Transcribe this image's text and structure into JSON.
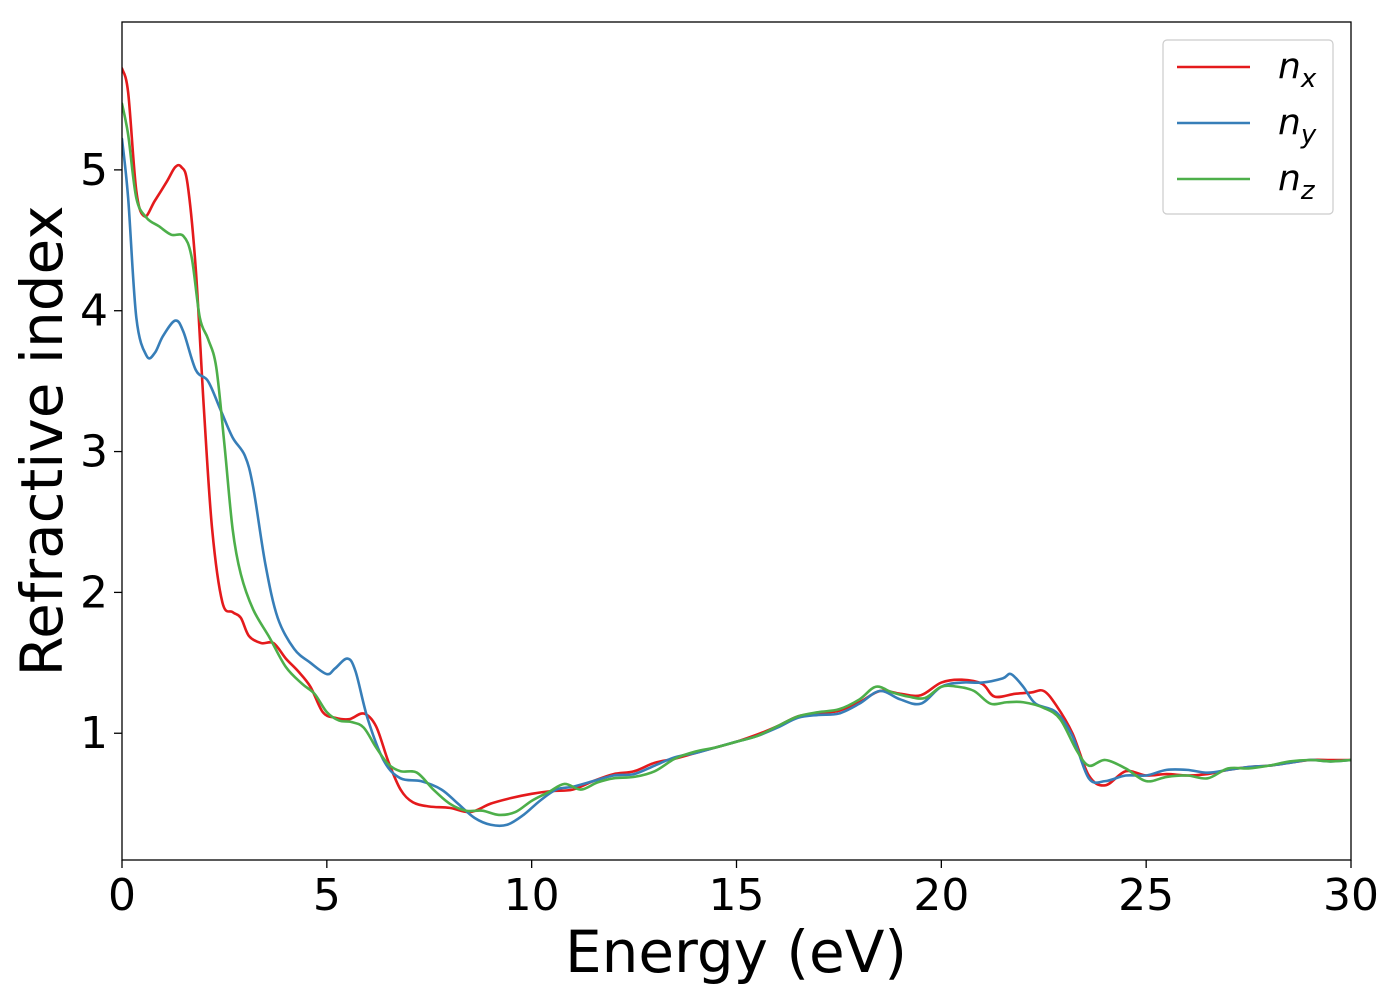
{
  "chart_data": {
    "type": "line",
    "title": "",
    "xlabel": "Energy (eV)",
    "ylabel": "Refractive index",
    "xlim": [
      0,
      30
    ],
    "ylim": [
      0.1,
      6.05
    ],
    "xticks": [
      0,
      5,
      10,
      15,
      20,
      25,
      30
    ],
    "yticks": [
      1,
      2,
      3,
      4,
      5
    ],
    "grid": false,
    "legend": {
      "position": "top-right"
    },
    "series": [
      {
        "name": "n_x",
        "label_main": "n",
        "label_sub": "x",
        "color": "#e41a1c",
        "points": [
          [
            0,
            5.72
          ],
          [
            0.15,
            5.55
          ],
          [
            0.35,
            4.85
          ],
          [
            0.55,
            4.67
          ],
          [
            0.8,
            4.78
          ],
          [
            1.1,
            4.92
          ],
          [
            1.3,
            5.02
          ],
          [
            1.45,
            5.02
          ],
          [
            1.6,
            4.9
          ],
          [
            1.8,
            4.3
          ],
          [
            2.0,
            3.3
          ],
          [
            2.2,
            2.45
          ],
          [
            2.45,
            1.93
          ],
          [
            2.7,
            1.86
          ],
          [
            2.9,
            1.82
          ],
          [
            3.1,
            1.69
          ],
          [
            3.4,
            1.64
          ],
          [
            3.7,
            1.64
          ],
          [
            4.0,
            1.53
          ],
          [
            4.3,
            1.44
          ],
          [
            4.6,
            1.33
          ],
          [
            4.9,
            1.15
          ],
          [
            5.2,
            1.11
          ],
          [
            5.55,
            1.1
          ],
          [
            5.9,
            1.14
          ],
          [
            6.2,
            1.05
          ],
          [
            6.5,
            0.8
          ],
          [
            6.8,
            0.6
          ],
          [
            7.1,
            0.51
          ],
          [
            7.5,
            0.48
          ],
          [
            8.0,
            0.47
          ],
          [
            8.5,
            0.44
          ],
          [
            9.0,
            0.5
          ],
          [
            9.5,
            0.54
          ],
          [
            10.0,
            0.57
          ],
          [
            10.5,
            0.59
          ],
          [
            11.0,
            0.6
          ],
          [
            11.5,
            0.66
          ],
          [
            12.0,
            0.71
          ],
          [
            12.5,
            0.73
          ],
          [
            13.0,
            0.79
          ],
          [
            13.5,
            0.82
          ],
          [
            14.0,
            0.86
          ],
          [
            14.5,
            0.9
          ],
          [
            15.0,
            0.94
          ],
          [
            15.5,
            0.99
          ],
          [
            16.0,
            1.05
          ],
          [
            16.5,
            1.12
          ],
          [
            17.0,
            1.14
          ],
          [
            17.5,
            1.16
          ],
          [
            18.0,
            1.22
          ],
          [
            18.5,
            1.3
          ],
          [
            19.0,
            1.28
          ],
          [
            19.5,
            1.27
          ],
          [
            20.0,
            1.36
          ],
          [
            20.5,
            1.38
          ],
          [
            21.0,
            1.35
          ],
          [
            21.3,
            1.26
          ],
          [
            21.8,
            1.28
          ],
          [
            22.2,
            1.29
          ],
          [
            22.5,
            1.3
          ],
          [
            22.8,
            1.2
          ],
          [
            23.2,
            1.0
          ],
          [
            23.6,
            0.7
          ],
          [
            24.0,
            0.63
          ],
          [
            24.5,
            0.73
          ],
          [
            25.0,
            0.7
          ],
          [
            25.5,
            0.71
          ],
          [
            26.0,
            0.7
          ],
          [
            26.5,
            0.71
          ],
          [
            27.0,
            0.74
          ],
          [
            27.5,
            0.76
          ],
          [
            28.0,
            0.77
          ],
          [
            28.5,
            0.79
          ],
          [
            29.0,
            0.81
          ],
          [
            29.5,
            0.81
          ],
          [
            30.0,
            0.81
          ]
        ]
      },
      {
        "name": "n_y",
        "label_main": "n",
        "label_sub": "y",
        "color": "#377eb8",
        "points": [
          [
            0,
            5.22
          ],
          [
            0.15,
            4.8
          ],
          [
            0.35,
            3.95
          ],
          [
            0.6,
            3.68
          ],
          [
            0.8,
            3.7
          ],
          [
            1.0,
            3.82
          ],
          [
            1.3,
            3.93
          ],
          [
            1.5,
            3.85
          ],
          [
            1.8,
            3.58
          ],
          [
            2.1,
            3.5
          ],
          [
            2.4,
            3.3
          ],
          [
            2.7,
            3.1
          ],
          [
            3.0,
            2.97
          ],
          [
            3.2,
            2.75
          ],
          [
            3.5,
            2.2
          ],
          [
            3.8,
            1.82
          ],
          [
            4.2,
            1.6
          ],
          [
            4.6,
            1.5
          ],
          [
            5.0,
            1.42
          ],
          [
            5.2,
            1.46
          ],
          [
            5.5,
            1.53
          ],
          [
            5.7,
            1.44
          ],
          [
            6.0,
            1.1
          ],
          [
            6.4,
            0.8
          ],
          [
            6.8,
            0.68
          ],
          [
            7.3,
            0.66
          ],
          [
            7.8,
            0.6
          ],
          [
            8.2,
            0.5
          ],
          [
            8.6,
            0.4
          ],
          [
            9.0,
            0.35
          ],
          [
            9.4,
            0.35
          ],
          [
            9.8,
            0.42
          ],
          [
            10.2,
            0.52
          ],
          [
            10.6,
            0.6
          ],
          [
            11.0,
            0.62
          ],
          [
            11.5,
            0.66
          ],
          [
            12.0,
            0.7
          ],
          [
            12.5,
            0.71
          ],
          [
            13.0,
            0.77
          ],
          [
            13.5,
            0.83
          ],
          [
            14.0,
            0.86
          ],
          [
            14.5,
            0.9
          ],
          [
            15.0,
            0.94
          ],
          [
            15.5,
            0.98
          ],
          [
            16.0,
            1.04
          ],
          [
            16.5,
            1.11
          ],
          [
            17.0,
            1.13
          ],
          [
            17.5,
            1.14
          ],
          [
            18.0,
            1.21
          ],
          [
            18.5,
            1.3
          ],
          [
            19.0,
            1.24
          ],
          [
            19.5,
            1.21
          ],
          [
            20.0,
            1.33
          ],
          [
            20.5,
            1.36
          ],
          [
            21.0,
            1.36
          ],
          [
            21.5,
            1.39
          ],
          [
            21.7,
            1.42
          ],
          [
            22.0,
            1.33
          ],
          [
            22.3,
            1.21
          ],
          [
            22.8,
            1.15
          ],
          [
            23.2,
            0.98
          ],
          [
            23.6,
            0.68
          ],
          [
            24.0,
            0.66
          ],
          [
            24.5,
            0.7
          ],
          [
            25.0,
            0.7
          ],
          [
            25.5,
            0.74
          ],
          [
            26.0,
            0.74
          ],
          [
            26.5,
            0.72
          ],
          [
            27.0,
            0.74
          ],
          [
            27.5,
            0.76
          ],
          [
            28.0,
            0.77
          ],
          [
            28.5,
            0.79
          ],
          [
            29.0,
            0.81
          ],
          [
            29.5,
            0.8
          ],
          [
            30.0,
            0.81
          ]
        ]
      },
      {
        "name": "n_z",
        "label_main": "n",
        "label_sub": "z",
        "color": "#4daf4a",
        "points": [
          [
            0,
            5.47
          ],
          [
            0.15,
            5.25
          ],
          [
            0.35,
            4.8
          ],
          [
            0.6,
            4.66
          ],
          [
            0.9,
            4.6
          ],
          [
            1.2,
            4.54
          ],
          [
            1.5,
            4.53
          ],
          [
            1.7,
            4.38
          ],
          [
            1.9,
            3.95
          ],
          [
            2.1,
            3.8
          ],
          [
            2.3,
            3.6
          ],
          [
            2.5,
            3.05
          ],
          [
            2.7,
            2.45
          ],
          [
            2.9,
            2.13
          ],
          [
            3.2,
            1.88
          ],
          [
            3.6,
            1.68
          ],
          [
            4.0,
            1.47
          ],
          [
            4.4,
            1.35
          ],
          [
            4.7,
            1.28
          ],
          [
            5.0,
            1.15
          ],
          [
            5.3,
            1.09
          ],
          [
            5.6,
            1.08
          ],
          [
            5.9,
            1.04
          ],
          [
            6.2,
            0.9
          ],
          [
            6.5,
            0.78
          ],
          [
            6.8,
            0.73
          ],
          [
            7.2,
            0.72
          ],
          [
            7.6,
            0.6
          ],
          [
            8.0,
            0.5
          ],
          [
            8.4,
            0.45
          ],
          [
            8.8,
            0.45
          ],
          [
            9.2,
            0.42
          ],
          [
            9.6,
            0.44
          ],
          [
            10.0,
            0.52
          ],
          [
            10.4,
            0.58
          ],
          [
            10.8,
            0.64
          ],
          [
            11.2,
            0.6
          ],
          [
            11.6,
            0.65
          ],
          [
            12.0,
            0.68
          ],
          [
            12.5,
            0.69
          ],
          [
            13.0,
            0.73
          ],
          [
            13.5,
            0.82
          ],
          [
            14.0,
            0.87
          ],
          [
            14.5,
            0.9
          ],
          [
            15.0,
            0.94
          ],
          [
            15.5,
            0.98
          ],
          [
            16.0,
            1.05
          ],
          [
            16.5,
            1.12
          ],
          [
            17.0,
            1.15
          ],
          [
            17.5,
            1.17
          ],
          [
            18.0,
            1.24
          ],
          [
            18.4,
            1.33
          ],
          [
            18.8,
            1.29
          ],
          [
            19.2,
            1.26
          ],
          [
            19.6,
            1.25
          ],
          [
            20.0,
            1.33
          ],
          [
            20.4,
            1.33
          ],
          [
            20.8,
            1.3
          ],
          [
            21.2,
            1.21
          ],
          [
            21.6,
            1.22
          ],
          [
            22.0,
            1.22
          ],
          [
            22.5,
            1.18
          ],
          [
            22.9,
            1.1
          ],
          [
            23.3,
            0.88
          ],
          [
            23.6,
            0.77
          ],
          [
            24.0,
            0.81
          ],
          [
            24.5,
            0.75
          ],
          [
            25.0,
            0.66
          ],
          [
            25.5,
            0.69
          ],
          [
            26.0,
            0.7
          ],
          [
            26.5,
            0.68
          ],
          [
            27.0,
            0.75
          ],
          [
            27.5,
            0.75
          ],
          [
            28.0,
            0.77
          ],
          [
            28.5,
            0.8
          ],
          [
            29.0,
            0.81
          ],
          [
            29.5,
            0.8
          ],
          [
            30.0,
            0.81
          ]
        ]
      }
    ]
  }
}
